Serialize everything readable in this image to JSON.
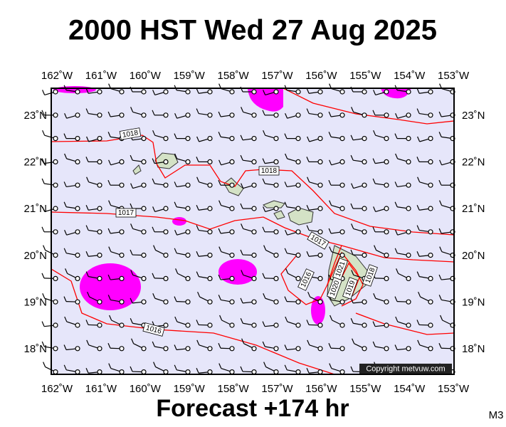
{
  "title": "2000 HST Wed 27 Aug 2025",
  "longitude_labels": [
    "162˚W",
    "161˚W",
    "160˚W",
    "159˚W",
    "158˚W",
    "157˚W",
    "156˚W",
    "155˚W",
    "154˚W",
    "153˚W"
  ],
  "latitude_labels": [
    "23˚N",
    "22˚N",
    "21˚N",
    "20˚N",
    "19˚N",
    "18˚N"
  ],
  "isobar_labels": [
    "1018",
    "1018",
    "1017",
    "1017",
    "1016",
    "1016",
    "1021",
    "1020",
    "1019",
    "1018"
  ],
  "copyright": "Copyright metvuw.com",
  "footer": "Forecast +174 hr",
  "model": "M3"
}
